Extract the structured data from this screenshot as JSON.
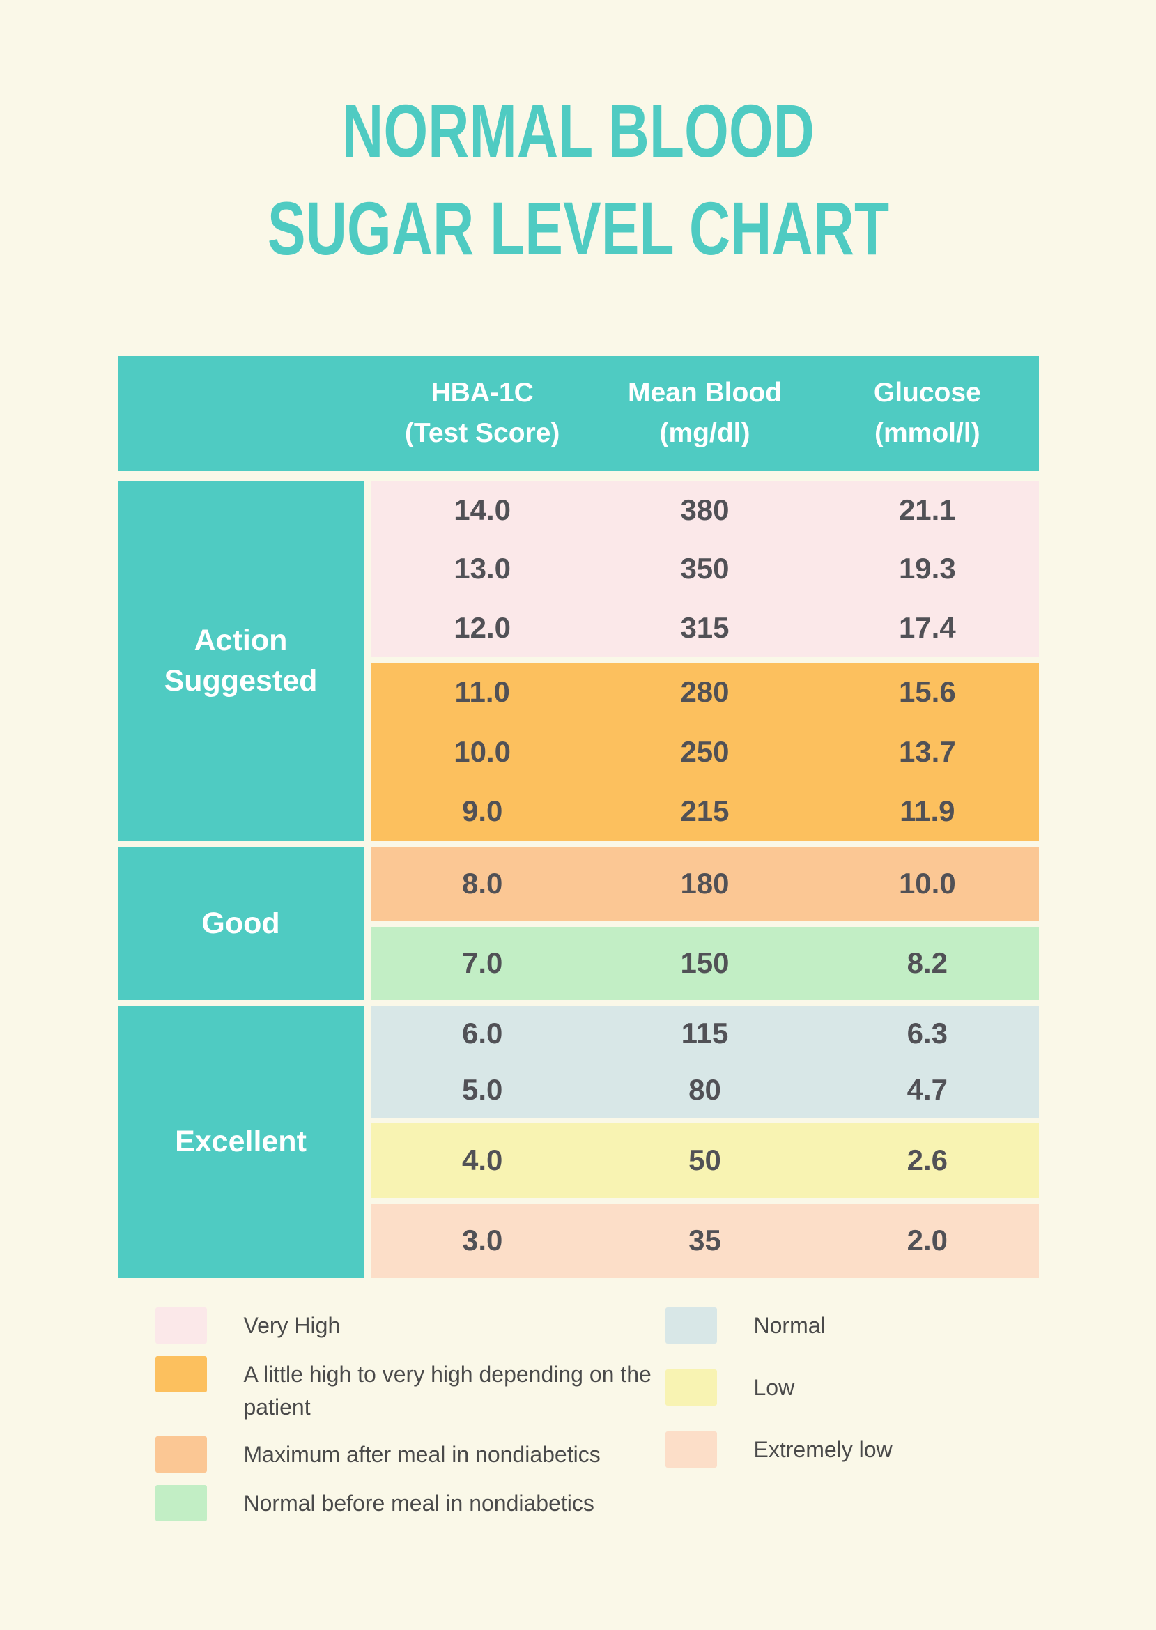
{
  "page": {
    "title_line1": "NORMAL BLOOD",
    "title_line2": "SUGAR LEVEL CHART"
  },
  "table": {
    "header": [
      {
        "line1": "HBA-1C",
        "line2": "(Test Score)"
      },
      {
        "line1": "Mean Blood",
        "line2": "(mg/dl)"
      },
      {
        "line1": "Glucose",
        "line2": "(mmol/l)"
      }
    ],
    "groups": [
      {
        "label": "Action Suggested"
      },
      {
        "label": "Good"
      },
      {
        "label": "Excellent"
      }
    ],
    "sections": [
      {
        "name": "very-high",
        "rows": [
          [
            "14.0",
            "380",
            "21.1"
          ],
          [
            "13.0",
            "350",
            "19.3"
          ],
          [
            "12.0",
            "315",
            "17.4"
          ]
        ]
      },
      {
        "name": "a-little-high",
        "rows": [
          [
            "11.0",
            "280",
            "15.6"
          ],
          [
            "10.0",
            "250",
            "13.7"
          ],
          [
            "9.0",
            "215",
            "11.9"
          ]
        ]
      },
      {
        "name": "max-after-meal",
        "rows": [
          [
            "8.0",
            "180",
            "10.0"
          ]
        ]
      },
      {
        "name": "normal-before-meal",
        "rows": [
          [
            "7.0",
            "150",
            "8.2"
          ]
        ]
      },
      {
        "name": "normal",
        "rows": [
          [
            "6.0",
            "115",
            "6.3"
          ],
          [
            "5.0",
            "80",
            "4.7"
          ]
        ]
      },
      {
        "name": "low",
        "rows": [
          [
            "4.0",
            "50",
            "2.6"
          ]
        ]
      },
      {
        "name": "extremely-low",
        "rows": [
          [
            "3.0",
            "35",
            "2.0"
          ]
        ]
      }
    ]
  },
  "legend": {
    "left": [
      {
        "key": "very_high",
        "label": "Very High"
      },
      {
        "key": "a_little_high",
        "label": "A little high to very high depending on the patient"
      },
      {
        "key": "max_after_meal",
        "label": "Maximum after meal in nondiabetics"
      },
      {
        "key": "normal_before_meal",
        "label": "Normal before meal in nondiabetics"
      }
    ],
    "right": [
      {
        "key": "normal",
        "label": "Normal"
      },
      {
        "key": "low",
        "label": "Low"
      },
      {
        "key": "extremely_low",
        "label": "Extremely low"
      }
    ]
  },
  "colors": {
    "teal": "#4fcbc2",
    "background": "#faf8e8",
    "very_high": "#fbe8e9",
    "a_little_high": "#fcc05e",
    "max_after_meal": "#fbc794",
    "normal_before_meal": "#c2eec5",
    "normal": "#d8e7e7",
    "low": "#f8f3b2",
    "extremely_low": "#fcdec8",
    "header_text": "#ffffff",
    "value_text": "#515156",
    "legend_text": "#4a4a4a"
  },
  "chart_data": {
    "type": "table",
    "title": "NORMAL BLOOD SUGAR LEVEL CHART",
    "columns": [
      "HBA-1C (Test Score)",
      "Mean Blood (mg/dl)",
      "Glucose (mmol/l)"
    ],
    "row_groups": [
      {
        "group": "Action Suggested",
        "bands": [
          {
            "band": "Very High",
            "rows": [
              [
                14.0,
                380,
                21.1
              ],
              [
                13.0,
                350,
                19.3
              ],
              [
                12.0,
                315,
                17.4
              ]
            ]
          },
          {
            "band": "A little high to very high depending on the patient",
            "rows": [
              [
                11.0,
                280,
                15.6
              ],
              [
                10.0,
                250,
                13.7
              ],
              [
                9.0,
                215,
                11.9
              ]
            ]
          }
        ]
      },
      {
        "group": "Good",
        "bands": [
          {
            "band": "Maximum after meal in nondiabetics",
            "rows": [
              [
                8.0,
                180,
                10.0
              ]
            ]
          },
          {
            "band": "Normal before meal in nondiabetics",
            "rows": [
              [
                7.0,
                150,
                8.2
              ]
            ]
          }
        ]
      },
      {
        "group": "Excellent",
        "bands": [
          {
            "band": "Normal",
            "rows": [
              [
                6.0,
                115,
                6.3
              ],
              [
                5.0,
                80,
                4.7
              ]
            ]
          },
          {
            "band": "Low",
            "rows": [
              [
                4.0,
                50,
                2.6
              ]
            ]
          },
          {
            "band": "Extremely low",
            "rows": [
              [
                3.0,
                35,
                2.0
              ]
            ]
          }
        ]
      }
    ],
    "legend_position": "bottom",
    "grid": false
  }
}
